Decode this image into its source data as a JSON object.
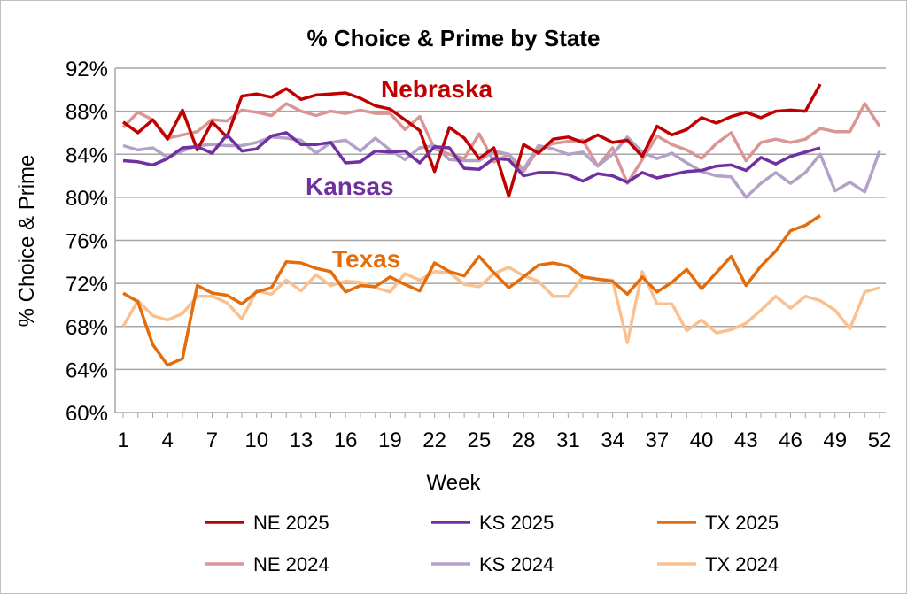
{
  "chart_data": {
    "type": "line",
    "title": "% Choice & Prime by State",
    "xlabel": "Week",
    "ylabel": "% Choice & Prime",
    "ylim": [
      60,
      92
    ],
    "xlim": [
      1,
      52
    ],
    "yticks": [
      "60%",
      "64%",
      "68%",
      "72%",
      "76%",
      "80%",
      "84%",
      "88%",
      "92%"
    ],
    "xticks": [
      "1",
      "4",
      "7",
      "10",
      "13",
      "16",
      "19",
      "22",
      "25",
      "28",
      "31",
      "34",
      "37",
      "40",
      "43",
      "46",
      "49",
      "52"
    ],
    "grid": "horizontal",
    "legend_placement": "bottom",
    "annotations": [
      {
        "text": "Nebraska",
        "color": "#C00000"
      },
      {
        "text": "Kansas",
        "color": "#7030A0"
      },
      {
        "text": "Texas",
        "color": "#E46C0A"
      }
    ],
    "series": [
      {
        "name": "NE 2025",
        "color": "#C00000",
        "values": [
          87.0,
          86.0,
          87.2,
          85.4,
          88.1,
          84.4,
          87.0,
          85.6,
          89.4,
          89.6,
          89.3,
          90.1,
          89.1,
          89.5,
          89.6,
          89.7,
          89.2,
          88.5,
          88.2,
          87.2,
          86.2,
          82.4,
          86.5,
          85.5,
          83.6,
          84.6,
          80.1,
          84.9,
          84.1,
          85.4,
          85.6,
          85.1,
          85.8,
          85.1,
          85.3,
          83.8,
          86.6,
          85.8,
          86.3,
          87.4,
          86.9,
          87.5,
          87.9,
          87.4,
          88.0,
          88.1,
          88.0,
          90.5
        ]
      },
      {
        "name": "KS 2025",
        "color": "#7030A0",
        "values": [
          83.4,
          83.3,
          83.0,
          83.6,
          84.6,
          84.7,
          84.1,
          85.8,
          84.3,
          84.5,
          85.7,
          86.0,
          84.9,
          84.9,
          85.1,
          83.2,
          83.3,
          84.3,
          84.2,
          84.3,
          83.2,
          84.7,
          84.6,
          82.7,
          82.6,
          83.6,
          83.5,
          82.0,
          82.3,
          82.3,
          82.1,
          81.5,
          82.2,
          82.0,
          81.4,
          82.3,
          81.8,
          82.1,
          82.4,
          82.5,
          82.9,
          83.0,
          82.5,
          83.7,
          83.1,
          83.8,
          84.2,
          84.6
        ]
      },
      {
        "name": "TX 2025",
        "color": "#E46C0A",
        "values": [
          71.1,
          70.3,
          66.3,
          64.4,
          65.0,
          71.8,
          71.1,
          70.9,
          70.1,
          71.2,
          71.6,
          74.0,
          73.9,
          73.4,
          73.1,
          71.2,
          71.8,
          71.7,
          72.6,
          71.9,
          71.3,
          73.9,
          73.1,
          72.7,
          74.5,
          73.0,
          71.6,
          72.6,
          73.7,
          73.9,
          73.6,
          72.6,
          72.4,
          72.2,
          71.0,
          72.6,
          71.2,
          72.1,
          73.3,
          71.5,
          73.0,
          74.5,
          71.8,
          73.6,
          75.0,
          76.9,
          77.4,
          78.3
        ]
      },
      {
        "name": "NE 2024",
        "color": "#D99694",
        "values": [
          86.5,
          87.9,
          87.2,
          85.5,
          85.8,
          86.1,
          87.2,
          87.1,
          88.1,
          87.9,
          87.6,
          88.7,
          88.0,
          87.6,
          88.0,
          87.8,
          88.1,
          87.8,
          87.8,
          86.3,
          87.5,
          84.5,
          84.0,
          83.6,
          85.9,
          83.3,
          84.0,
          82.4,
          84.5,
          85.0,
          85.2,
          85.3,
          82.9,
          84.6,
          81.3,
          83.5,
          85.7,
          84.9,
          84.4,
          83.6,
          85.0,
          86.0,
          83.4,
          85.1,
          85.4,
          85.1,
          85.4,
          86.4,
          86.1,
          86.1,
          88.7,
          86.6
        ]
      },
      {
        "name": "KS 2024",
        "color": "#B3A2C7",
        "values": [
          84.8,
          84.4,
          84.6,
          83.7,
          84.3,
          84.8,
          84.9,
          84.8,
          84.8,
          85.1,
          85.6,
          85.5,
          85.3,
          84.1,
          85.1,
          85.3,
          84.3,
          85.5,
          84.4,
          83.5,
          84.6,
          84.8,
          83.5,
          83.4,
          83.4,
          84.3,
          84.0,
          82.6,
          84.8,
          84.5,
          84.0,
          84.2,
          82.9,
          84.0,
          85.6,
          84.2,
          83.6,
          84.1,
          83.2,
          82.4,
          82.0,
          81.9,
          80.0,
          81.3,
          82.3,
          81.3,
          82.3,
          84.0,
          80.6,
          81.4,
          80.5,
          84.3
        ]
      },
      {
        "name": "TX 2024",
        "color": "#FAC090",
        "values": [
          68.0,
          70.4,
          69.0,
          68.6,
          69.2,
          70.8,
          70.8,
          70.2,
          68.7,
          71.3,
          71.0,
          72.3,
          71.3,
          72.8,
          71.8,
          72.2,
          72.1,
          71.6,
          71.2,
          72.9,
          72.3,
          73.1,
          73.0,
          71.9,
          71.7,
          72.9,
          73.5,
          72.7,
          72.2,
          70.8,
          70.8,
          72.6,
          72.4,
          72.3,
          66.5,
          73.1,
          70.1,
          70.1,
          67.6,
          68.6,
          67.4,
          67.7,
          68.3,
          69.5,
          70.8,
          69.7,
          70.8,
          70.4,
          69.5,
          67.8,
          71.2,
          71.6
        ]
      }
    ]
  }
}
